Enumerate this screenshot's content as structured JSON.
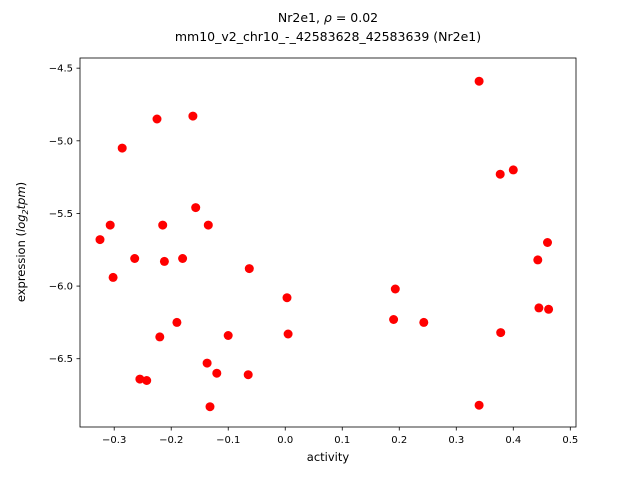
{
  "title": {
    "parts": [
      "Nr2e1, ",
      "ρ",
      " = 0.02"
    ],
    "subtitle": "mm10_v2_chr10_-_42583628_42583639 (Nr2e1)"
  },
  "axes": {
    "xlabel": "activity",
    "ylabel_prefix": "expression (",
    "ylabel_math_log": "log",
    "ylabel_math_sub": "2",
    "ylabel_math_var": "tpm",
    "ylabel_suffix": ")"
  },
  "chart_data": {
    "type": "scatter",
    "title": "Nr2e1, ρ = 0.02",
    "subtitle": "mm10_v2_chr10_-_42583628_42583639 (Nr2e1)",
    "xlabel": "activity",
    "ylabel": "expression (log₂tpm)",
    "xlim": [
      -0.36,
      0.51
    ],
    "ylim": [
      -6.97,
      -4.43
    ],
    "xticks": [
      -0.3,
      -0.2,
      -0.1,
      0.0,
      0.1,
      0.2,
      0.3,
      0.4,
      0.5
    ],
    "yticks": [
      -4.5,
      -5.0,
      -5.5,
      -6.0,
      -6.5
    ],
    "grid": false,
    "legend": null,
    "marker_color": "#ff0000",
    "marker_radius": 4.5,
    "points": [
      [
        -0.325,
        -5.68
      ],
      [
        -0.307,
        -5.58
      ],
      [
        -0.302,
        -5.94
      ],
      [
        -0.286,
        -5.05
      ],
      [
        -0.264,
        -5.81
      ],
      [
        -0.255,
        -6.64
      ],
      [
        -0.243,
        -6.65
      ],
      [
        -0.225,
        -4.85
      ],
      [
        -0.215,
        -5.58
      ],
      [
        -0.22,
        -6.35
      ],
      [
        -0.212,
        -5.83
      ],
      [
        -0.19,
        -6.25
      ],
      [
        -0.18,
        -5.81
      ],
      [
        -0.162,
        -4.83
      ],
      [
        -0.157,
        -5.46
      ],
      [
        -0.135,
        -5.58
      ],
      [
        -0.137,
        -6.53
      ],
      [
        -0.132,
        -6.83
      ],
      [
        -0.12,
        -6.6
      ],
      [
        -0.1,
        -6.34
      ],
      [
        -0.065,
        -6.61
      ],
      [
        -0.063,
        -5.88
      ],
      [
        0.003,
        -6.08
      ],
      [
        0.005,
        -6.33
      ],
      [
        0.19,
        -6.23
      ],
      [
        0.193,
        -6.02
      ],
      [
        0.243,
        -6.25
      ],
      [
        0.34,
        -4.59
      ],
      [
        0.34,
        -6.82
      ],
      [
        0.377,
        -5.23
      ],
      [
        0.378,
        -6.32
      ],
      [
        0.4,
        -5.2
      ],
      [
        0.443,
        -5.82
      ],
      [
        0.445,
        -6.15
      ],
      [
        0.462,
        -6.16
      ],
      [
        0.46,
        -5.7
      ]
    ]
  }
}
